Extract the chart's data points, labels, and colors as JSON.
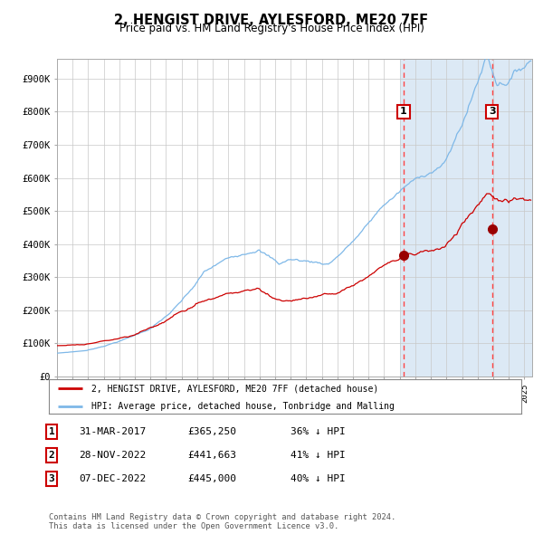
{
  "title": "2, HENGIST DRIVE, AYLESFORD, ME20 7FF",
  "subtitle": "Price paid vs. HM Land Registry's House Price Index (HPI)",
  "title_fontsize": 10.5,
  "subtitle_fontsize": 8.5,
  "ylabel_ticks": [
    "£0",
    "£100K",
    "£200K",
    "£300K",
    "£400K",
    "£500K",
    "£600K",
    "£700K",
    "£800K",
    "£900K"
  ],
  "ytick_values": [
    0,
    100000,
    200000,
    300000,
    400000,
    500000,
    600000,
    700000,
    800000,
    900000
  ],
  "ylim": [
    0,
    960000
  ],
  "xlim_start": 1995.0,
  "xlim_end": 2025.5,
  "hpi_color": "#7eb8e8",
  "price_color": "#cc0000",
  "dashed_line_color": "#ff4444",
  "background_color": "#dce9f5",
  "plot_bg_color": "#ffffff",
  "marker_color": "#990000",
  "marker_size": 7,
  "ann1_x": 2017.25,
  "ann1_y": 365250,
  "ann3_x": 2022.93,
  "ann3_y": 445000,
  "shade_start": 2017.0,
  "legend_entries": [
    {
      "label": "2, HENGIST DRIVE, AYLESFORD, ME20 7FF (detached house)",
      "color": "#cc0000"
    },
    {
      "label": "HPI: Average price, detached house, Tonbridge and Malling",
      "color": "#7eb8e8"
    }
  ],
  "table_rows": [
    {
      "num": "1",
      "date": "31-MAR-2017",
      "price": "£365,250",
      "hpi": "36% ↓ HPI"
    },
    {
      "num": "2",
      "date": "28-NOV-2022",
      "price": "£441,663",
      "hpi": "41% ↓ HPI"
    },
    {
      "num": "3",
      "date": "07-DEC-2022",
      "price": "£445,000",
      "hpi": "40% ↓ HPI"
    }
  ],
  "footer1": "Contains HM Land Registry data © Crown copyright and database right 2024.",
  "footer2": "This data is licensed under the Open Government Licence v3.0."
}
